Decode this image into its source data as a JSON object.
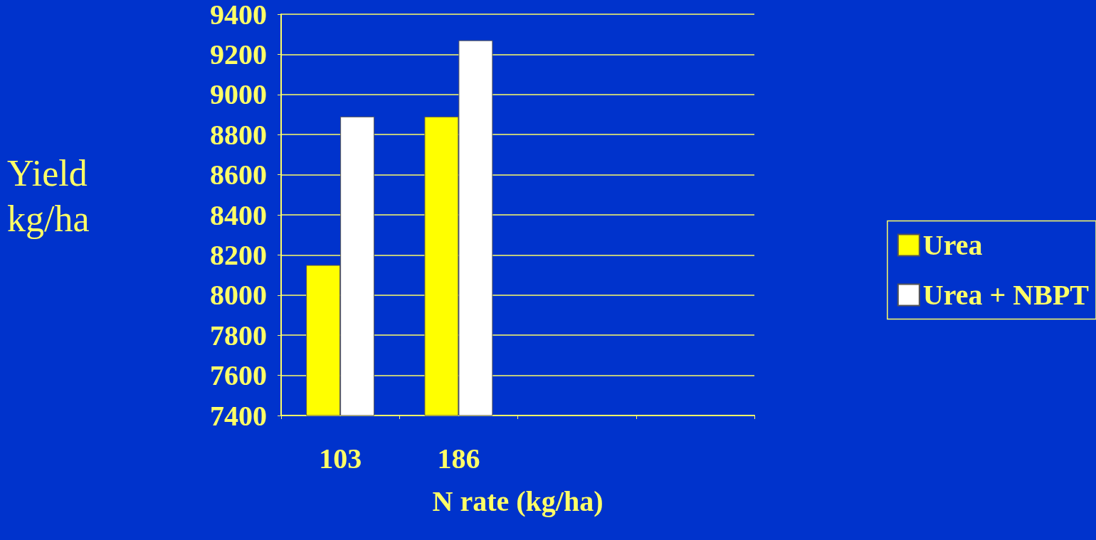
{
  "chart_data": {
    "type": "bar",
    "xlabel": "N rate (kg/ha)",
    "ylabel": "Yield kg/ha",
    "categories": [
      "103",
      "186",
      null,
      null
    ],
    "series": [
      {
        "name": "Urea",
        "color": "#ffff00",
        "values": [
          8150,
          8890,
          null,
          null
        ]
      },
      {
        "name": "Urea + NBPT",
        "color": "#ffffff",
        "values": [
          8890,
          9270,
          null,
          null
        ]
      }
    ],
    "ylim": [
      7400,
      9400
    ],
    "yticks": [
      7400,
      7600,
      7800,
      8000,
      8200,
      8400,
      8600,
      8800,
      9000,
      9200,
      9400
    ],
    "grid": "y",
    "legend": "right"
  }
}
